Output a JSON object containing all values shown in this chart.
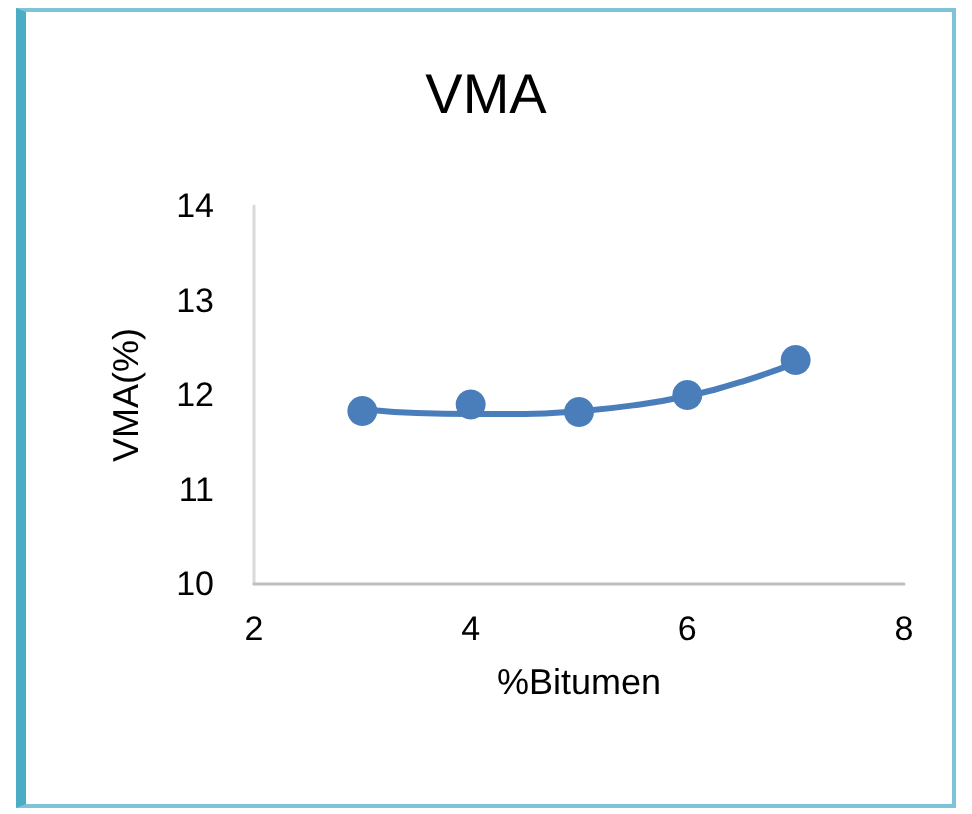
{
  "chart_data": {
    "type": "scatter",
    "title": "VMA",
    "xlabel": "%Bitumen",
    "ylabel": "VMA(%)",
    "xlim": [
      2,
      8
    ],
    "xticks": [
      2,
      4,
      6,
      8
    ],
    "ylim": [
      10,
      14
    ],
    "yticks": [
      10,
      11,
      12,
      13,
      14
    ],
    "grid": false,
    "marker": "circle",
    "series": [
      {
        "color": "#4a7ebb",
        "x": [
          3,
          4,
          5,
          6,
          7
        ],
        "values": [
          11.83,
          11.9,
          11.82,
          12.0,
          12.37
        ]
      },
      {
        "type": "line",
        "color": "#4a7ebb",
        "marker": "none",
        "line_style": "solid",
        "x": [
          3,
          3.5,
          4,
          4.5,
          5,
          5.5,
          6,
          6.5,
          7
        ],
        "values": [
          11.85,
          11.81,
          11.8,
          11.8,
          11.83,
          11.89,
          11.99,
          12.14,
          12.34
        ]
      }
    ]
  }
}
